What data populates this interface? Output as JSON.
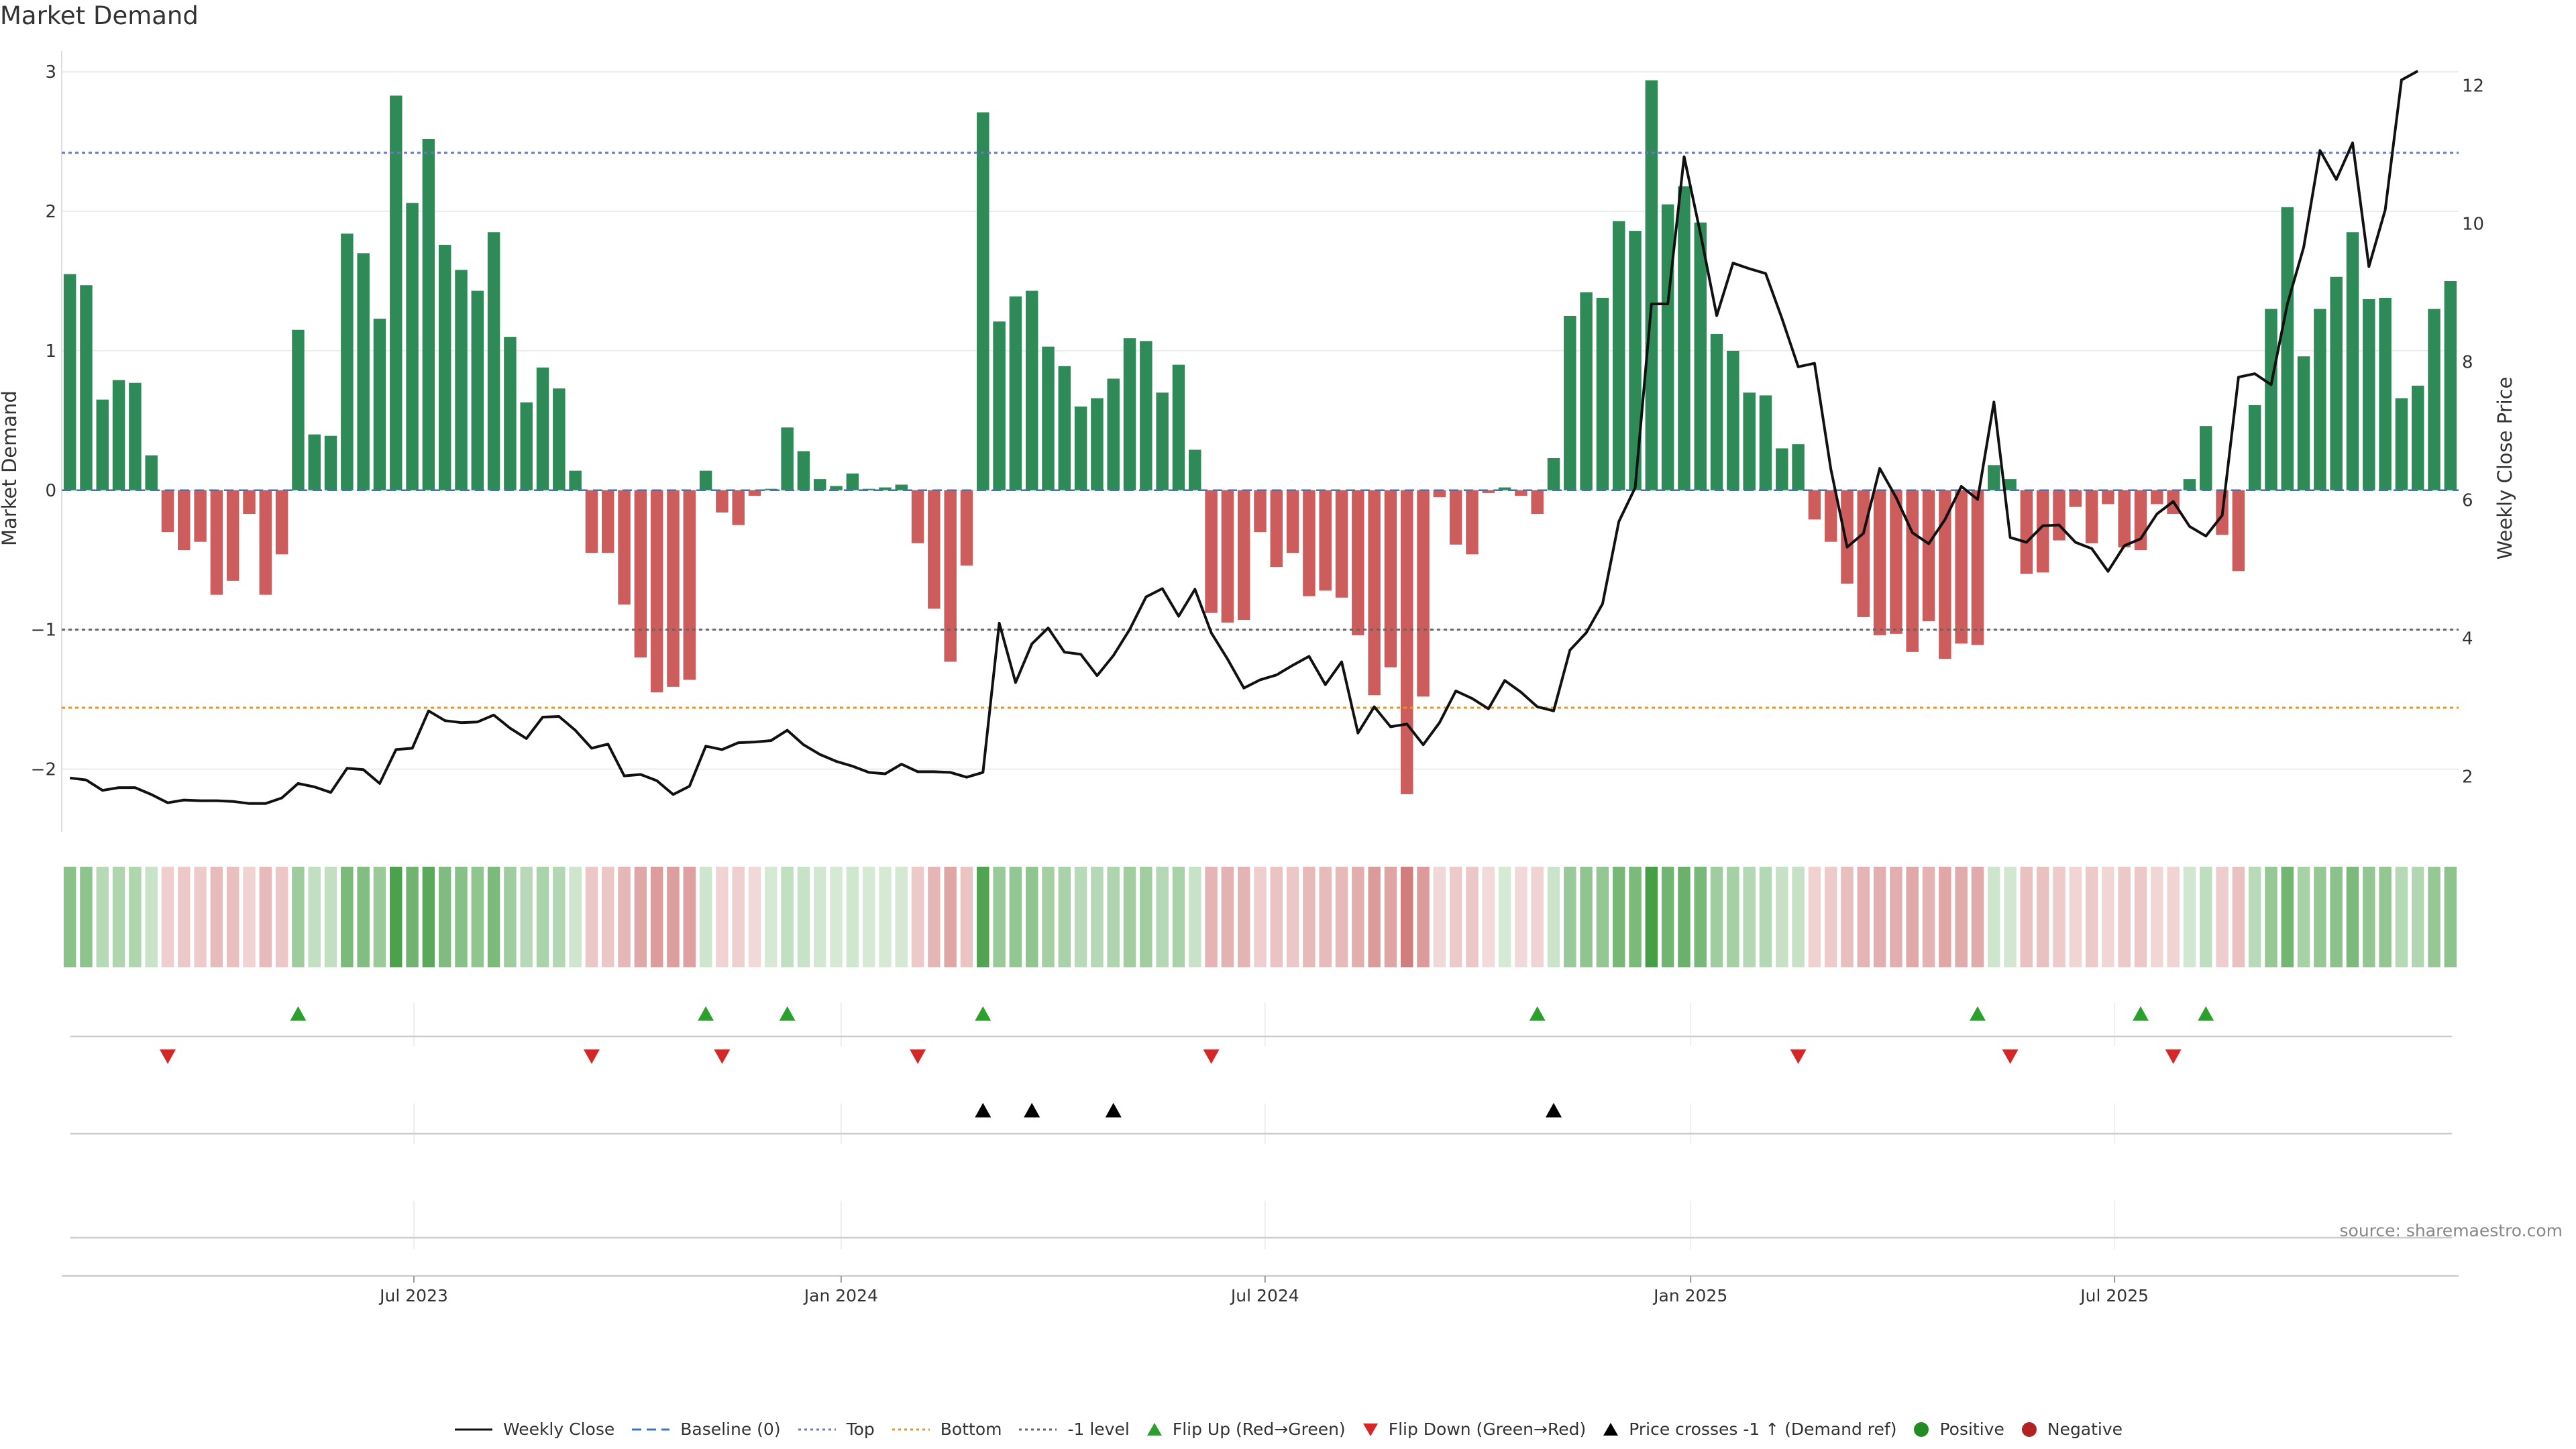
{
  "chart_title": "Market Demand",
  "source_text": "source: sharemaestro.com",
  "colors": {
    "positive": "#2e8b57",
    "negative": "#cd5c5c",
    "price": "#111111",
    "baseline": "#3a75c4",
    "top_line": "#6b7ab0",
    "bottom_line": "#e5922e",
    "minus1_line": "#666666",
    "flip_up": "#2ca02c",
    "flip_down": "#d62728",
    "cross": "#000000",
    "dot_positive": "#228b22",
    "dot_negative": "#b22222"
  },
  "chart_data": {
    "type": "bar",
    "x_label": "",
    "ylabel": "Market Demand",
    "y2label": "Weekly Close Price",
    "ylim": [
      -2.45,
      3.15
    ],
    "y2lim": [
      1.2,
      12.5
    ],
    "y_ticks": [
      "3",
      "2",
      "1",
      "0",
      "−1",
      "−2"
    ],
    "y_tick_values": [
      3,
      2,
      1,
      0,
      -1,
      -2
    ],
    "y2_ticks": [
      "12",
      "10",
      "8",
      "6",
      "4",
      "2"
    ],
    "y2_tick_values": [
      12,
      10,
      8,
      6,
      4,
      2
    ],
    "x_ticks": [
      "Jul 2023",
      "Jan 2024",
      "Jul 2024",
      "Jan 2025",
      "Jul 2025"
    ],
    "x_tick_weeks": [
      21.6,
      47.8,
      73.8,
      99.9,
      125.9
    ],
    "reference_lines": {
      "top": 2.42,
      "bottom": -1.56,
      "minus1": -1.0,
      "baseline": 0
    },
    "demand": [
      1.55,
      1.47,
      0.65,
      0.79,
      0.77,
      0.25,
      -0.3,
      -0.43,
      -0.37,
      -0.75,
      -0.65,
      -0.17,
      -0.75,
      -0.46,
      1.15,
      0.4,
      0.39,
      1.84,
      1.7,
      1.23,
      2.83,
      2.06,
      2.52,
      1.76,
      1.58,
      1.43,
      1.85,
      1.1,
      0.63,
      0.88,
      0.73,
      0.14,
      -0.45,
      -0.45,
      -0.82,
      -1.2,
      -1.45,
      -1.41,
      -1.36,
      0.14,
      -0.16,
      -0.25,
      -0.04,
      0.01,
      0.45,
      0.28,
      0.08,
      0.03,
      0.12,
      0.01,
      0.02,
      0.04,
      -0.38,
      -0.85,
      -1.23,
      -0.54,
      2.71,
      1.21,
      1.39,
      1.43,
      1.03,
      0.89,
      0.6,
      0.66,
      0.8,
      1.09,
      1.07,
      0.7,
      0.9,
      0.29,
      -0.88,
      -0.95,
      -0.93,
      -0.3,
      -0.55,
      -0.45,
      -0.76,
      -0.72,
      -0.77,
      -1.04,
      -1.47,
      -1.27,
      -2.18,
      -1.48,
      -0.05,
      -0.39,
      -0.46,
      -0.02,
      0.02,
      -0.04,
      -0.17,
      0.23,
      1.25,
      1.42,
      1.38,
      1.93,
      1.86,
      2.94,
      2.05,
      2.18,
      1.92,
      1.12,
      1.0,
      0.7,
      0.68,
      0.3,
      0.33,
      -0.21,
      -0.37,
      -0.67,
      -0.91,
      -1.04,
      -1.03,
      -1.16,
      -0.94,
      -1.21,
      -1.1,
      -1.11,
      0.18,
      0.08,
      -0.6,
      -0.59,
      -0.36,
      -0.12,
      -0.38,
      -0.1,
      -0.41,
      -0.43,
      -0.1,
      -0.17,
      0.08,
      0.46,
      -0.32,
      -0.58,
      0.61,
      1.3,
      2.03,
      0.96,
      1.3,
      1.53,
      1.85,
      1.37,
      1.38,
      0.66,
      0.75,
      1.3,
      1.5
    ],
    "price": [
      1.98,
      1.95,
      1.8,
      1.84,
      1.84,
      1.74,
      1.62,
      1.66,
      1.65,
      1.65,
      1.64,
      1.61,
      1.61,
      1.69,
      1.9,
      1.85,
      1.77,
      2.12,
      2.1,
      1.9,
      2.39,
      2.41,
      2.95,
      2.81,
      2.78,
      2.79,
      2.89,
      2.7,
      2.55,
      2.86,
      2.87,
      2.67,
      2.41,
      2.47,
      2.01,
      2.03,
      1.94,
      1.74,
      1.86,
      2.44,
      2.39,
      2.49,
      2.5,
      2.52,
      2.67,
      2.46,
      2.32,
      2.22,
      2.15,
      2.06,
      2.04,
      2.18,
      2.07,
      2.07,
      2.06,
      1.99,
      2.06,
      4.22,
      3.36,
      3.92,
      4.15,
      3.8,
      3.77,
      3.46,
      3.75,
      4.13,
      4.6,
      4.72,
      4.32,
      4.71,
      4.08,
      3.7,
      3.28,
      3.4,
      3.47,
      3.61,
      3.74,
      3.33,
      3.66,
      2.63,
      3.01,
      2.72,
      2.76,
      2.46,
      2.78,
      3.24,
      3.13,
      2.98,
      3.39,
      3.22,
      3.01,
      2.95,
      3.83,
      4.08,
      4.5,
      5.69,
      6.18,
      8.84,
      8.84,
      10.97,
      9.86,
      8.67,
      9.43,
      9.35,
      9.28,
      8.63,
      7.93,
      7.98,
      6.45,
      5.32,
      5.52,
      6.46,
      6.04,
      5.53,
      5.37,
      5.72,
      6.2,
      6.01,
      7.42,
      5.46,
      5.39,
      5.63,
      5.64,
      5.39,
      5.3,
      4.97,
      5.34,
      5.44,
      5.8,
      5.98,
      5.62,
      5.48,
      5.78,
      7.78,
      7.83,
      7.67,
      8.84,
      9.66,
      11.06,
      10.64,
      11.17,
      9.38,
      10.2,
      12.08,
      12.21
    ],
    "series": [
      {
        "name": "Market Demand",
        "kind": "bar"
      },
      {
        "name": "Weekly Close",
        "kind": "line"
      }
    ],
    "flip_up_weeks": [
      14,
      39,
      44,
      56,
      90,
      117,
      127,
      131
    ],
    "flip_down_weeks": [
      6,
      32,
      40,
      52,
      70,
      106,
      119,
      129
    ],
    "price_cross_weeks": [
      56,
      59,
      64,
      91
    ]
  },
  "legend": [
    {
      "key": "weekly-close",
      "label": "Weekly Close",
      "symbol": "solid-line",
      "color": "#111111"
    },
    {
      "key": "baseline",
      "label": "Baseline (0)",
      "symbol": "dashed-line",
      "color": "#3a75c4"
    },
    {
      "key": "top",
      "label": "Top",
      "symbol": "dotted-line",
      "color": "#6b7ab0"
    },
    {
      "key": "bottom",
      "label": "Bottom",
      "symbol": "dotted-line",
      "color": "#e5922e"
    },
    {
      "key": "minus1-level",
      "label": "-1 level",
      "symbol": "dotted-line",
      "color": "#666666"
    },
    {
      "key": "flip-up",
      "label": "Flip Up (Red→Green)",
      "symbol": "triangle-up",
      "color": "#2ca02c"
    },
    {
      "key": "flip-down",
      "label": "Flip Down (Green→Red)",
      "symbol": "triangle-down",
      "color": "#d62728"
    },
    {
      "key": "price-cross",
      "label": "Price crosses -1 ↑ (Demand ref)",
      "symbol": "triangle-up",
      "color": "#000000"
    },
    {
      "key": "positive",
      "label": "Positive",
      "symbol": "dot",
      "color": "#228b22"
    },
    {
      "key": "negative",
      "label": "Negative",
      "symbol": "dot",
      "color": "#b22222"
    }
  ]
}
